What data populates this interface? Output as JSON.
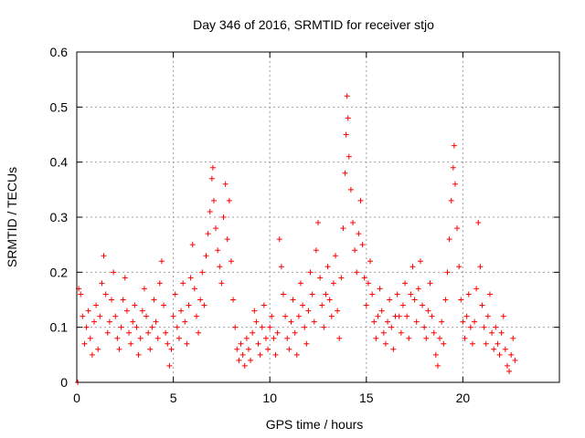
{
  "chart_data": {
    "type": "scatter",
    "title": "Day 346 of 2016, SRMTID for receiver stjo",
    "xlabel": "GPS time / hours",
    "ylabel": "SRMTID / TECUs",
    "xlim": [
      0,
      25
    ],
    "ylim": [
      0,
      0.6
    ],
    "grid": true,
    "marker": "+",
    "marker_color": "#ff0000",
    "x_ticks": [
      0,
      5,
      10,
      15,
      20
    ],
    "y_ticks": [
      0,
      0.1,
      0.2,
      0.3,
      0.4,
      0.5,
      0.6
    ],
    "x_tick_labels": [
      "0",
      "5",
      "10",
      "15",
      "20"
    ],
    "y_tick_labels": [
      "0",
      "0.1",
      "0.2",
      "0.3",
      "0.4",
      "0.5",
      "0.6"
    ],
    "series": [
      {
        "name": "SRMTID",
        "points": [
          [
            0.05,
            0.0
          ],
          [
            0.1,
            0.17
          ],
          [
            0.2,
            0.16
          ],
          [
            0.3,
            0.12
          ],
          [
            0.4,
            0.07
          ],
          [
            0.5,
            0.1
          ],
          [
            0.6,
            0.13
          ],
          [
            0.7,
            0.08
          ],
          [
            0.8,
            0.05
          ],
          [
            0.9,
            0.11
          ],
          [
            1.0,
            0.14
          ],
          [
            1.1,
            0.06
          ],
          [
            1.2,
            0.12
          ],
          [
            1.3,
            0.18
          ],
          [
            1.4,
            0.23
          ],
          [
            1.5,
            0.16
          ],
          [
            1.6,
            0.09
          ],
          [
            1.7,
            0.11
          ],
          [
            1.8,
            0.15
          ],
          [
            1.9,
            0.2
          ],
          [
            2.0,
            0.12
          ],
          [
            2.1,
            0.08
          ],
          [
            2.2,
            0.06
          ],
          [
            2.3,
            0.1
          ],
          [
            2.4,
            0.15
          ],
          [
            2.5,
            0.19
          ],
          [
            2.6,
            0.13
          ],
          [
            2.7,
            0.09
          ],
          [
            2.8,
            0.07
          ],
          [
            2.9,
            0.11
          ],
          [
            3.0,
            0.14
          ],
          [
            3.1,
            0.1
          ],
          [
            3.2,
            0.05
          ],
          [
            3.3,
            0.08
          ],
          [
            3.4,
            0.13
          ],
          [
            3.5,
            0.17
          ],
          [
            3.6,
            0.12
          ],
          [
            3.7,
            0.09
          ],
          [
            3.8,
            0.06
          ],
          [
            3.9,
            0.1
          ],
          [
            4.0,
            0.15
          ],
          [
            4.1,
            0.11
          ],
          [
            4.2,
            0.08
          ],
          [
            4.3,
            0.18
          ],
          [
            4.4,
            0.22
          ],
          [
            4.5,
            0.14
          ],
          [
            4.6,
            0.09
          ],
          [
            4.7,
            0.07
          ],
          [
            4.8,
            0.03
          ],
          [
            4.9,
            0.06
          ],
          [
            5.0,
            0.12
          ],
          [
            5.1,
            0.16
          ],
          [
            5.2,
            0.1
          ],
          [
            5.3,
            0.08
          ],
          [
            5.4,
            0.13
          ],
          [
            5.5,
            0.18
          ],
          [
            5.6,
            0.11
          ],
          [
            5.7,
            0.07
          ],
          [
            5.8,
            0.14
          ],
          [
            5.9,
            0.19
          ],
          [
            6.0,
            0.25
          ],
          [
            6.1,
            0.17
          ],
          [
            6.2,
            0.12
          ],
          [
            6.3,
            0.09
          ],
          [
            6.4,
            0.15
          ],
          [
            6.5,
            0.2
          ],
          [
            6.6,
            0.14
          ],
          [
            6.7,
            0.23
          ],
          [
            6.8,
            0.27
          ],
          [
            6.9,
            0.31
          ],
          [
            7.0,
            0.37
          ],
          [
            7.05,
            0.39
          ],
          [
            7.1,
            0.33
          ],
          [
            7.2,
            0.28
          ],
          [
            7.3,
            0.24
          ],
          [
            7.4,
            0.21
          ],
          [
            7.5,
            0.18
          ],
          [
            7.6,
            0.3
          ],
          [
            7.7,
            0.36
          ],
          [
            7.8,
            0.26
          ],
          [
            7.9,
            0.33
          ],
          [
            8.0,
            0.22
          ],
          [
            8.1,
            0.15
          ],
          [
            8.2,
            0.1
          ],
          [
            8.3,
            0.06
          ],
          [
            8.4,
            0.04
          ],
          [
            8.5,
            0.07
          ],
          [
            8.6,
            0.05
          ],
          [
            8.7,
            0.03
          ],
          [
            8.8,
            0.08
          ],
          [
            8.9,
            0.06
          ],
          [
            9.0,
            0.04
          ],
          [
            9.1,
            0.09
          ],
          [
            9.2,
            0.13
          ],
          [
            9.3,
            0.11
          ],
          [
            9.4,
            0.07
          ],
          [
            9.5,
            0.05
          ],
          [
            9.6,
            0.1
          ],
          [
            9.7,
            0.14
          ],
          [
            9.8,
            0.08
          ],
          [
            9.9,
            0.06
          ],
          [
            10.0,
            0.1
          ],
          [
            10.1,
            0.12
          ],
          [
            10.2,
            0.08
          ],
          [
            10.3,
            0.05
          ],
          [
            10.4,
            0.09
          ],
          [
            10.5,
            0.26
          ],
          [
            10.6,
            0.21
          ],
          [
            10.7,
            0.16
          ],
          [
            10.8,
            0.12
          ],
          [
            10.9,
            0.08
          ],
          [
            11.0,
            0.06
          ],
          [
            11.1,
            0.11
          ],
          [
            11.2,
            0.15
          ],
          [
            11.3,
            0.09
          ],
          [
            11.4,
            0.05
          ],
          [
            11.5,
            0.12
          ],
          [
            11.6,
            0.18
          ],
          [
            11.7,
            0.14
          ],
          [
            11.8,
            0.1
          ],
          [
            11.9,
            0.07
          ],
          [
            12.0,
            0.13
          ],
          [
            12.1,
            0.2
          ],
          [
            12.2,
            0.16
          ],
          [
            12.3,
            0.11
          ],
          [
            12.4,
            0.24
          ],
          [
            12.5,
            0.29
          ],
          [
            12.6,
            0.19
          ],
          [
            12.7,
            0.14
          ],
          [
            12.8,
            0.1
          ],
          [
            12.9,
            0.16
          ],
          [
            13.0,
            0.21
          ],
          [
            13.1,
            0.15
          ],
          [
            13.2,
            0.12
          ],
          [
            13.3,
            0.18
          ],
          [
            13.4,
            0.23
          ],
          [
            13.5,
            0.13
          ],
          [
            13.6,
            0.08
          ],
          [
            13.7,
            0.19
          ],
          [
            13.8,
            0.28
          ],
          [
            13.9,
            0.38
          ],
          [
            13.95,
            0.45
          ],
          [
            14.0,
            0.52
          ],
          [
            14.05,
            0.48
          ],
          [
            14.1,
            0.41
          ],
          [
            14.2,
            0.35
          ],
          [
            14.3,
            0.29
          ],
          [
            14.4,
            0.24
          ],
          [
            14.5,
            0.2
          ],
          [
            14.6,
            0.27
          ],
          [
            14.7,
            0.33
          ],
          [
            14.8,
            0.25
          ],
          [
            14.9,
            0.19
          ],
          [
            15.0,
            0.14
          ],
          [
            15.1,
            0.18
          ],
          [
            15.2,
            0.22
          ],
          [
            15.3,
            0.16
          ],
          [
            15.4,
            0.11
          ],
          [
            15.5,
            0.08
          ],
          [
            15.6,
            0.12
          ],
          [
            15.7,
            0.17
          ],
          [
            15.8,
            0.13
          ],
          [
            15.9,
            0.09
          ],
          [
            16.0,
            0.07
          ],
          [
            16.1,
            0.11
          ],
          [
            16.2,
            0.15
          ],
          [
            16.3,
            0.1
          ],
          [
            16.4,
            0.06
          ],
          [
            16.5,
            0.12
          ],
          [
            16.6,
            0.16
          ],
          [
            16.7,
            0.12
          ],
          [
            16.8,
            0.09
          ],
          [
            16.9,
            0.14
          ],
          [
            17.0,
            0.18
          ],
          [
            17.1,
            0.12
          ],
          [
            17.2,
            0.08
          ],
          [
            17.3,
            0.16
          ],
          [
            17.4,
            0.21
          ],
          [
            17.5,
            0.15
          ],
          [
            17.6,
            0.11
          ],
          [
            17.7,
            0.17
          ],
          [
            17.8,
            0.22
          ],
          [
            17.9,
            0.14
          ],
          [
            18.0,
            0.1
          ],
          [
            18.1,
            0.08
          ],
          [
            18.2,
            0.13
          ],
          [
            18.3,
            0.18
          ],
          [
            18.4,
            0.12
          ],
          [
            18.5,
            0.09
          ],
          [
            18.6,
            0.05
          ],
          [
            18.7,
            0.03
          ],
          [
            18.8,
            0.08
          ],
          [
            18.9,
            0.11
          ],
          [
            19.0,
            0.07
          ],
          [
            19.1,
            0.15
          ],
          [
            19.2,
            0.2
          ],
          [
            19.3,
            0.26
          ],
          [
            19.4,
            0.33
          ],
          [
            19.5,
            0.39
          ],
          [
            19.55,
            0.43
          ],
          [
            19.6,
            0.36
          ],
          [
            19.7,
            0.28
          ],
          [
            19.8,
            0.21
          ],
          [
            19.9,
            0.15
          ],
          [
            20.0,
            0.11
          ],
          [
            20.1,
            0.08
          ],
          [
            20.2,
            0.12
          ],
          [
            20.3,
            0.16
          ],
          [
            20.4,
            0.1
          ],
          [
            20.5,
            0.07
          ],
          [
            20.6,
            0.11
          ],
          [
            20.7,
            0.17
          ],
          [
            20.8,
            0.29
          ],
          [
            20.9,
            0.21
          ],
          [
            21.0,
            0.14
          ],
          [
            21.1,
            0.1
          ],
          [
            21.2,
            0.07
          ],
          [
            21.3,
            0.12
          ],
          [
            21.4,
            0.16
          ],
          [
            21.5,
            0.09
          ],
          [
            21.6,
            0.06
          ],
          [
            21.7,
            0.1
          ],
          [
            21.8,
            0.07
          ],
          [
            21.9,
            0.05
          ],
          [
            22.0,
            0.09
          ],
          [
            22.1,
            0.12
          ],
          [
            22.2,
            0.06
          ],
          [
            22.3,
            0.03
          ],
          [
            22.4,
            0.02
          ],
          [
            22.5,
            0.05
          ],
          [
            22.6,
            0.08
          ],
          [
            22.7,
            0.04
          ]
        ]
      }
    ]
  }
}
